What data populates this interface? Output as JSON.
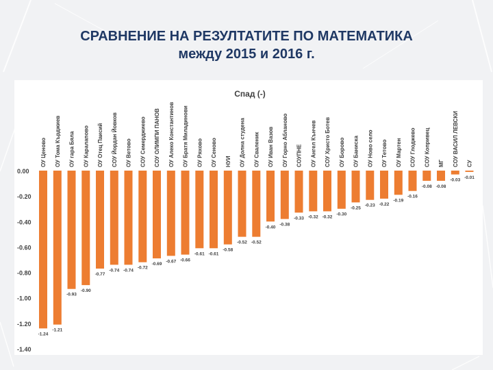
{
  "slide": {
    "title_line1": "СРАВНЕНИЕ НА РЕЗУЛТАТИТЕ ПО МАТЕМАТИКА",
    "title_line2": "между 2015 и 2016 г."
  },
  "colors": {
    "bar": "#ed7d31",
    "title": "#1f3864",
    "text": "#404040"
  },
  "chart_data": {
    "type": "bar",
    "title": "Спад (-)",
    "categories": [
      "ОУ Ценово",
      "ОУ Тома Кърджиев",
      "ОУ гара Бяла",
      "ОУ Каралапово",
      "ОУ Отец Паисий",
      "СОУ Йордан Йовков",
      "ОУ Ветово",
      "СОУ Семерджиево",
      "СОУ ОЛИМПИ ПАНОВ",
      "ОУ Алеко Константинов",
      "ОУ Братя Миладинови",
      "ОУ Ряхово",
      "ОУ Сеново",
      "НУИ",
      "ОУ Долна студена",
      "ОУ Сваленик",
      "ОУ Иван Вазов",
      "ОУ Горно Абланово",
      "СОУПНЕ",
      "ОУ Ангел Кънчев",
      "СОУ Христо Ботев",
      "ОУ Борово",
      "ОУ Баниска",
      "ОУ Ново село",
      "ОУ Тетово",
      "ОУ Мартен",
      "СОУ Глоджево",
      "СОУ Копривец",
      "МГ",
      "СОУ ВАСИЛ ЛЕВСКИ",
      "СУ"
    ],
    "values": [
      -1.24,
      -1.21,
      -0.93,
      -0.9,
      -0.77,
      -0.74,
      -0.74,
      -0.72,
      -0.69,
      -0.67,
      -0.66,
      -0.61,
      -0.61,
      -0.58,
      -0.52,
      -0.52,
      -0.4,
      -0.38,
      -0.33,
      -0.32,
      -0.32,
      -0.3,
      -0.25,
      -0.23,
      -0.22,
      -0.19,
      -0.16,
      -0.08,
      -0.08,
      -0.03,
      -0.01
    ],
    "value_labels": [
      "-1.24",
      "-1.21",
      "-0.93",
      "-0.90",
      "-0.77",
      "-0.74",
      "-0.74",
      "-0.72",
      "-0.69",
      "-0.67",
      "-0.66",
      "-0.61",
      "-0.61",
      "-0.58",
      "-0.52",
      "-0.52",
      "-0.40",
      "-0.38",
      "-0.33",
      "-0.32",
      "-0.32",
      "-0.30",
      "-0.25",
      "-0.23",
      "-0.22",
      "-0.19",
      "-0.16",
      "-0.08",
      "-0.08",
      "-0.03",
      "-0.01"
    ],
    "yticks": [
      "0.00",
      "-0.20",
      "-0.40",
      "-0.60",
      "-0.80",
      "-1.00",
      "-1.20",
      "-1.40"
    ],
    "ylim": [
      -1.4,
      0.0
    ],
    "grid": false,
    "legend": "none"
  }
}
